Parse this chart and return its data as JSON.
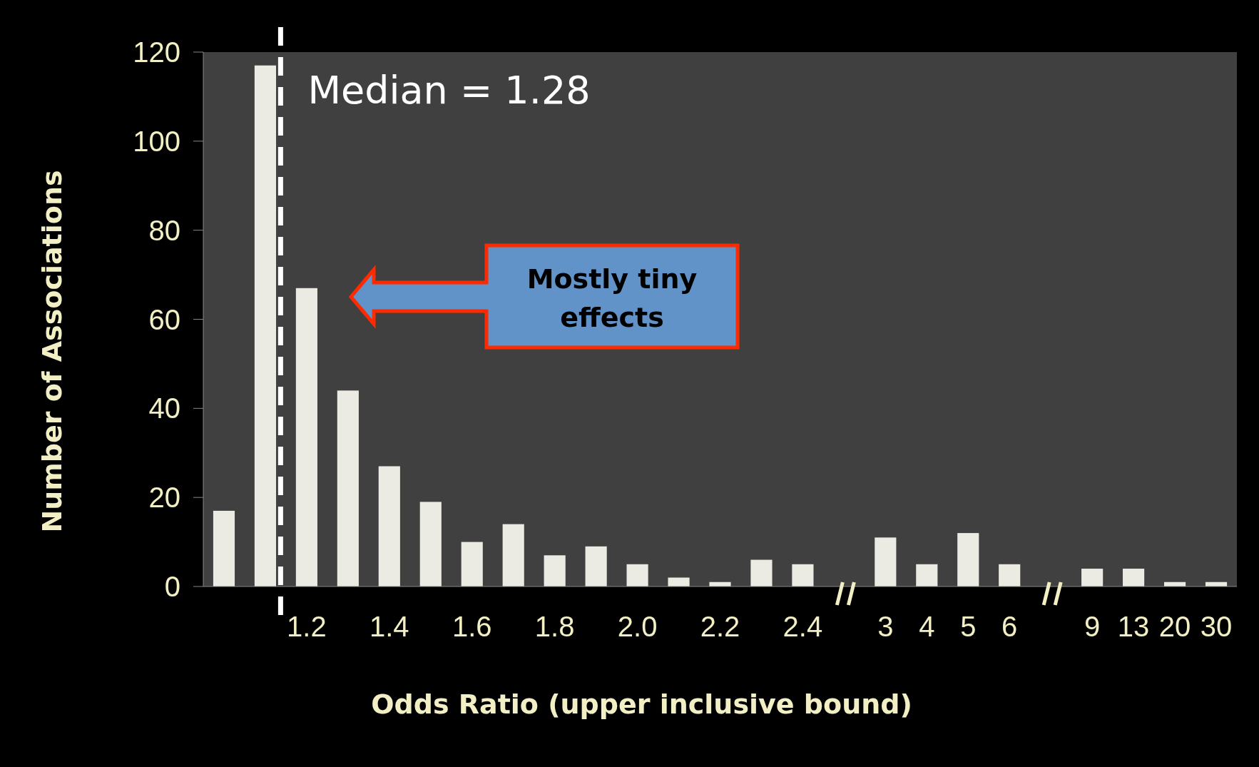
{
  "chart_data": {
    "type": "bar",
    "xlabel": "Odds Ratio (upper inclusive bound)",
    "ylabel": "Number of Associations",
    "categories": [
      null,
      null,
      "1.2",
      null,
      "1.4",
      null,
      "1.6",
      null,
      "1.8",
      null,
      "2.0",
      null,
      "2.2",
      null,
      "2.4",
      null,
      "3",
      "4",
      "5",
      "6",
      null,
      "9",
      "13",
      "20",
      "30"
    ],
    "values": [
      17,
      117,
      67,
      44,
      27,
      19,
      10,
      14,
      7,
      9,
      5,
      2,
      1,
      6,
      5,
      null,
      11,
      5,
      12,
      5,
      null,
      4,
      4,
      1,
      1
    ],
    "color": "#ecebe3",
    "ylim": [
      0,
      120
    ],
    "yticks": [
      0,
      20,
      40,
      60,
      80,
      100,
      120
    ],
    "annotations": [
      "Median = 1.28",
      "Mostly tiny effects"
    ]
  }
}
